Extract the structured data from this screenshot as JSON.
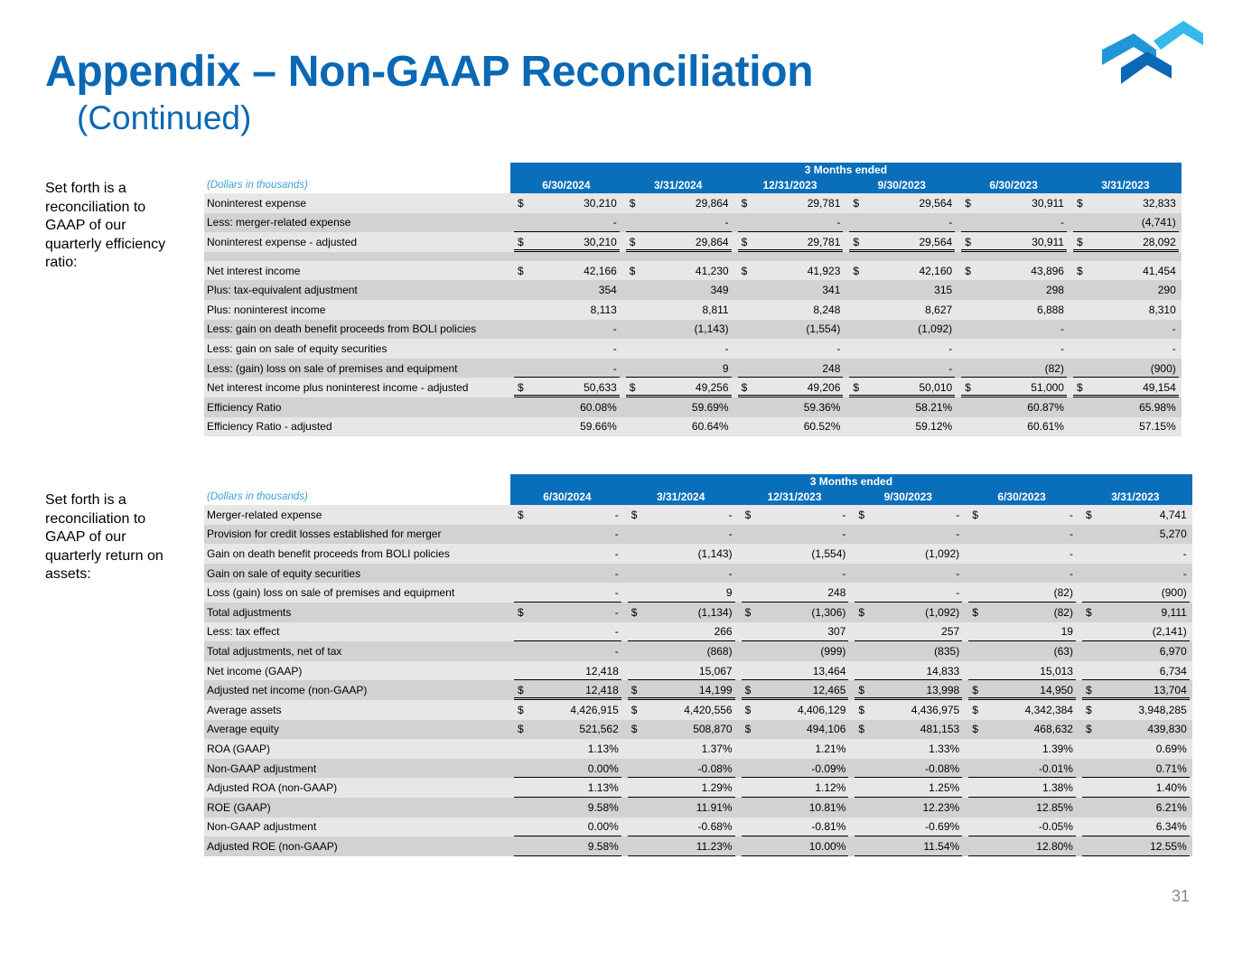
{
  "title": "Appendix – Non-GAAP Reconciliation",
  "subtitle": "(Continued)",
  "page_number": "31",
  "colors": {
    "brand": "#0a68b4",
    "header_band": "#0a6fba",
    "units": "#3aa0d8"
  },
  "table1": {
    "side_text": "Set forth is a reconciliation to GAAP of our quarterly efficiency ratio:",
    "band": "3 Months ended",
    "units": "(Dollars in thousands)",
    "columns": [
      "6/30/2024",
      "3/31/2024",
      "12/31/2023",
      "9/30/2023",
      "6/30/2023",
      "3/31/2023"
    ],
    "rows": [
      {
        "label": "Noninterest expense",
        "dollar": true,
        "line": "",
        "values": [
          "30,210",
          "29,864",
          "29,781",
          "29,564",
          "30,911",
          "32,833"
        ]
      },
      {
        "label": "Less: merger-related expense",
        "dollar": false,
        "line": "single",
        "values": [
          "-",
          "-",
          "-",
          "-",
          "-",
          "(4,741)"
        ]
      },
      {
        "label": "Noninterest expense - adjusted",
        "dollar": true,
        "line": "double",
        "values": [
          "30,210",
          "29,864",
          "29,781",
          "29,564",
          "30,911",
          "28,092"
        ]
      },
      {
        "spacer": true
      },
      {
        "label": "Net interest income",
        "dollar": true,
        "line": "",
        "values": [
          "42,166",
          "41,230",
          "41,923",
          "42,160",
          "43,896",
          "41,454"
        ]
      },
      {
        "label": "Plus: tax-equivalent adjustment",
        "dollar": false,
        "line": "",
        "values": [
          "354",
          "349",
          "341",
          "315",
          "298",
          "290"
        ]
      },
      {
        "label": "Plus: noninterest income",
        "dollar": false,
        "line": "",
        "values": [
          "8,113",
          "8,811",
          "8,248",
          "8,627",
          "6,888",
          "8,310"
        ]
      },
      {
        "label": "Less: gain on death benefit proceeds from BOLI policies",
        "dollar": false,
        "line": "",
        "values": [
          "-",
          "(1,143)",
          "(1,554)",
          "(1,092)",
          "-",
          "-"
        ]
      },
      {
        "label": "Less: gain on sale of equity securities",
        "dollar": false,
        "line": "",
        "values": [
          "-",
          "-",
          "-",
          "-",
          "-",
          "-"
        ]
      },
      {
        "label": "Less: (gain) loss on sale of premises and equipment",
        "dollar": false,
        "line": "single",
        "values": [
          "-",
          "9",
          "248",
          "-",
          "(82)",
          "(900)"
        ]
      },
      {
        "label": "Net interest income plus noninterest income - adjusted",
        "dollar": true,
        "line": "double",
        "values": [
          "50,633",
          "49,256",
          "49,206",
          "50,010",
          "51,000",
          "49,154"
        ]
      },
      {
        "label": "Efficiency Ratio",
        "dollar": false,
        "line": "",
        "values": [
          "60.08%",
          "59.69%",
          "59.36%",
          "58.21%",
          "60.87%",
          "65.98%"
        ]
      },
      {
        "label": "Efficiency Ratio - adjusted",
        "dollar": false,
        "line": "",
        "values": [
          "59.66%",
          "60.64%",
          "60.52%",
          "59.12%",
          "60.61%",
          "57.15%"
        ]
      }
    ]
  },
  "table2": {
    "side_text": "Set forth is a reconciliation to GAAP of our quarterly return on assets:",
    "band": "3 Months ended",
    "units": "(Dollars in thousands)",
    "columns": [
      "6/30/2024",
      "3/31/2024",
      "12/31/2023",
      "9/30/2023",
      "6/30/2023",
      "3/31/2023"
    ],
    "rows": [
      {
        "label": "Merger-related expense",
        "dollar": true,
        "line": "",
        "values": [
          "-",
          "-",
          "-",
          "-",
          "-",
          "4,741"
        ]
      },
      {
        "label": "Provision for credit losses established for merger",
        "dollar": false,
        "line": "",
        "values": [
          "-",
          "-",
          "-",
          "-",
          "-",
          "5,270"
        ]
      },
      {
        "label": "Gain on death benefit proceeds from BOLI policies",
        "dollar": false,
        "line": "",
        "values": [
          "-",
          "(1,143)",
          "(1,554)",
          "(1,092)",
          "-",
          "-"
        ]
      },
      {
        "label": "Gain on sale of equity securities",
        "dollar": false,
        "line": "",
        "values": [
          "-",
          "-",
          "-",
          "-",
          "-",
          "-"
        ]
      },
      {
        "label": "Loss (gain) loss on sale of premises and equipment",
        "dollar": false,
        "line": "single",
        "values": [
          "-",
          "9",
          "248",
          "-",
          "(82)",
          "(900)"
        ]
      },
      {
        "label": "Total adjustments",
        "dollar": true,
        "line": "",
        "values": [
          "-",
          "(1,134)",
          "(1,306)",
          "(1,092)",
          "(82)",
          "9,111"
        ]
      },
      {
        "label": "Less: tax effect",
        "dollar": false,
        "line": "single",
        "values": [
          "-",
          "266",
          "307",
          "257",
          "19",
          "(2,141)"
        ]
      },
      {
        "label": "Total adjustments, net of tax",
        "dollar": false,
        "line": "",
        "values": [
          "-",
          "(868)",
          "(999)",
          "(835)",
          "(63)",
          "6,970"
        ]
      },
      {
        "label": "Net income (GAAP)",
        "dollar": false,
        "line": "single",
        "values": [
          "12,418",
          "15,067",
          "13,464",
          "14,833",
          "15,013",
          "6,734"
        ]
      },
      {
        "label": "Adjusted net income (non-GAAP)",
        "dollar": true,
        "line": "double",
        "values": [
          "12,418",
          "14,199",
          "12,465",
          "13,998",
          "14,950",
          "13,704"
        ]
      },
      {
        "label": "Average assets",
        "dollar": true,
        "line": "",
        "values": [
          "4,426,915",
          "4,420,556",
          "4,406,129",
          "4,436,975",
          "4,342,384",
          "3,948,285"
        ]
      },
      {
        "label": "Average equity",
        "dollar": true,
        "line": "",
        "values": [
          "521,562",
          "508,870",
          "494,106",
          "481,153",
          "468,632",
          "439,830"
        ]
      },
      {
        "label": "ROA (GAAP)",
        "dollar": false,
        "line": "",
        "values": [
          "1.13%",
          "1.37%",
          "1.21%",
          "1.33%",
          "1.39%",
          "0.69%"
        ]
      },
      {
        "label": "Non-GAAP adjustment",
        "dollar": false,
        "line": "single",
        "values": [
          "0.00%",
          "-0.08%",
          "-0.09%",
          "-0.08%",
          "-0.01%",
          "0.71%"
        ]
      },
      {
        "label": "Adjusted ROA (non-GAAP)",
        "dollar": false,
        "line": "single",
        "values": [
          "1.13%",
          "1.29%",
          "1.12%",
          "1.25%",
          "1.38%",
          "1.40%"
        ]
      },
      {
        "label": "ROE (GAAP)",
        "dollar": false,
        "line": "",
        "values": [
          "9.58%",
          "11.91%",
          "10.81%",
          "12.23%",
          "12.85%",
          "6.21%"
        ]
      },
      {
        "label": "Non-GAAP adjustment",
        "dollar": false,
        "line": "single",
        "values": [
          "0.00%",
          "-0.68%",
          "-0.81%",
          "-0.69%",
          "-0.05%",
          "6.34%"
        ]
      },
      {
        "label": "Adjusted ROE (non-GAAP)",
        "dollar": false,
        "line": "single",
        "values": [
          "9.58%",
          "11.23%",
          "10.00%",
          "11.54%",
          "12.80%",
          "12.55%"
        ]
      }
    ]
  }
}
